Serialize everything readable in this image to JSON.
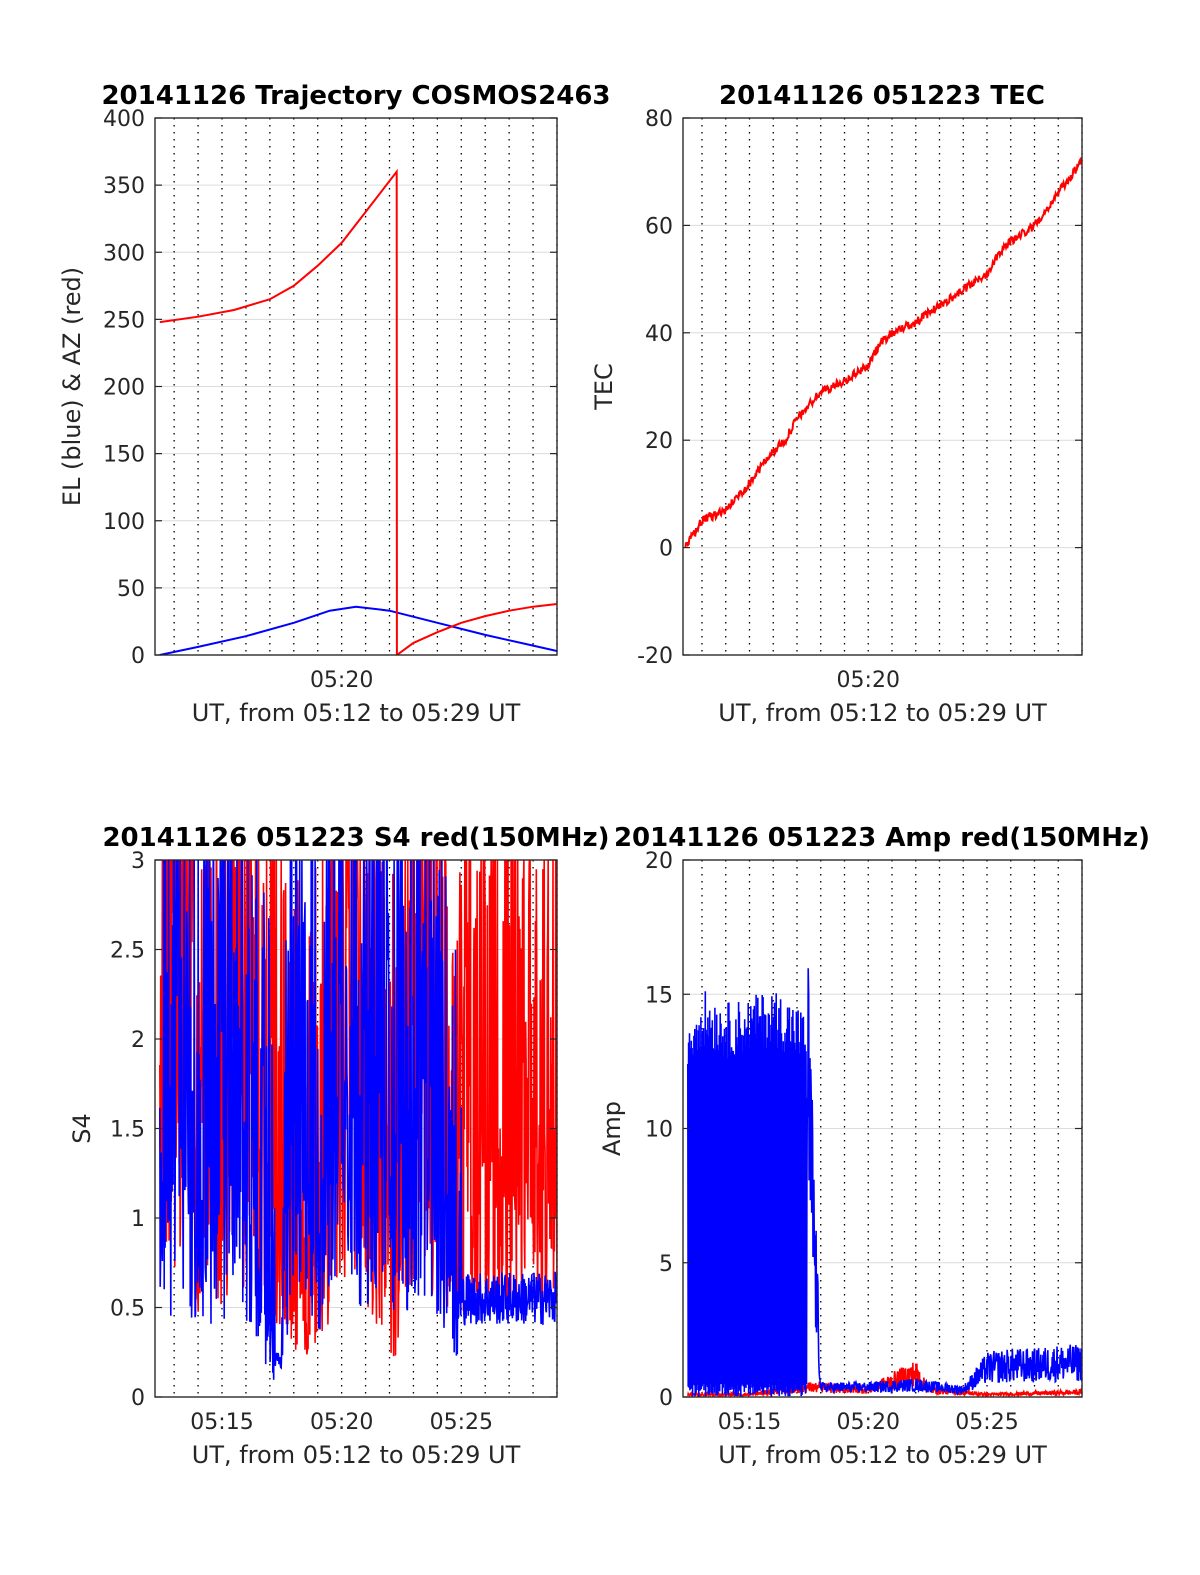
{
  "charts": {
    "traj": {
      "title": "20141126 Trajectory COSMOS2463",
      "ylabel": "EL (blue) & AZ (red)",
      "xlabel": "UT, from 05:12 to 05:29 UT",
      "yticks": [
        "0",
        "50",
        "100",
        "150",
        "200",
        "250",
        "300",
        "350",
        "400"
      ],
      "xticks": [
        "05:20"
      ]
    },
    "tec": {
      "title": "20141126 051223 TEC",
      "ylabel": "TEC",
      "xlabel": "UT, from 05:12 to 05:29 UT",
      "yticks": [
        "-20",
        "0",
        "20",
        "40",
        "60",
        "80"
      ],
      "xticks": [
        "05:20"
      ]
    },
    "s4": {
      "title": "20141126 051223 S4 red(150MHz)",
      "ylabel": "S4",
      "xlabel": "UT, from 05:12 to 05:29 UT",
      "yticks": [
        "0",
        "0.5",
        "1",
        "1.5",
        "2",
        "2.5",
        "3"
      ],
      "xticks": [
        "05:15",
        "05:20",
        "05:25"
      ]
    },
    "amp": {
      "title": "20141126 051223 Amp red(150MHz)",
      "ylabel": "Amp",
      "xlabel": "UT, from 05:12 to 05:29 UT",
      "yticks": [
        "0",
        "5",
        "10",
        "15",
        "20"
      ],
      "xticks": [
        "05:15",
        "05:20",
        "05:25"
      ]
    }
  },
  "chart_data": [
    {
      "type": "line",
      "title": "20141126 Trajectory COSMOS2463",
      "ylabel": "EL (blue) & AZ (red)",
      "xlabel": "UT, from 05:12 to 05:29 UT",
      "x_unit": "minutes after 05:00 UT",
      "xlim": [
        12.2,
        29.0
      ],
      "ylim": [
        0,
        400
      ],
      "grid": "vertical dotted",
      "colors": {
        "EL": "#0000ff",
        "AZ": "#ff0000"
      },
      "series": [
        {
          "color": "blue",
          "x": [
            12.4,
            14.0,
            16.0,
            18.0,
            19.5,
            20.6,
            22.0,
            24.0,
            26.0,
            28.0,
            29.0
          ],
          "values": [
            0,
            6,
            14,
            24,
            33,
            36,
            33,
            24,
            15,
            7,
            3
          ]
        },
        {
          "color": "red",
          "x": [
            12.4,
            14.0,
            15.5,
            17.0,
            18.0,
            19.0,
            20.0,
            21.0,
            22.3,
            22.31,
            23.0,
            24.0,
            25.0,
            26.0,
            27.0,
            28.0,
            29.0
          ],
          "values": [
            248,
            252,
            257,
            265,
            275,
            290,
            307,
            330,
            360,
            0,
            9,
            17,
            24,
            29,
            33,
            36,
            38
          ]
        }
      ]
    },
    {
      "type": "line",
      "title": "20141126 051223 TEC",
      "ylabel": "TEC",
      "xlabel": "UT, from 05:12 to 05:29 UT",
      "x_unit": "minutes after 05:00 UT",
      "xlim": [
        12.2,
        29.0
      ],
      "ylim": [
        -20,
        80
      ],
      "grid": "vertical dotted",
      "series": [
        {
          "color": "red",
          "x": [
            12.3,
            13.0,
            14.0,
            15.0,
            15.8,
            16.5,
            17.0,
            18.0,
            19.0,
            20.0,
            20.5,
            21.0,
            22.0,
            23.0,
            24.0,
            25.0,
            25.5,
            26.0,
            27.0,
            28.0,
            29.0
          ],
          "values": [
            0,
            5,
            7,
            12,
            17,
            20,
            24,
            29,
            31,
            34,
            38,
            40,
            42,
            45,
            48,
            51,
            55,
            57,
            60,
            66,
            72
          ]
        }
      ]
    },
    {
      "type": "line",
      "title": "20141126 051223 S4 red(150MHz)",
      "ylabel": "S4",
      "xlabel": "UT, from 05:12 to 05:29 UT",
      "x_unit": "minutes after 05:00 UT",
      "xlim": [
        12.2,
        29.0
      ],
      "ylim": [
        0,
        3
      ],
      "grid": "vertical dotted",
      "note": "dense noisy traces; values clipped at 3",
      "series": [
        {
          "color": "red",
          "x": [
            12.4,
            14.0,
            16.0,
            17.5,
            18.5,
            20.0,
            21.0,
            21.8,
            22.3,
            23.0,
            24.0,
            25.0,
            26.0,
            27.0,
            28.0,
            29.0
          ],
          "values": [
            3.0,
            1.5,
            1.9,
            1.2,
            0.6,
            1.8,
            1.6,
            0.9,
            0.7,
            2.0,
            1.5,
            1.5,
            1.5,
            1.5,
            1.5,
            1.5
          ]
        },
        {
          "color": "blue",
          "x": [
            12.4,
            14.0,
            16.0,
            17.3,
            18.0,
            19.0,
            20.0,
            21.0,
            22.0,
            23.0,
            24.0,
            25.0,
            26.0,
            27.0,
            28.0,
            29.0
          ],
          "values": [
            1.5,
            1.3,
            1.4,
            0.15,
            1.6,
            1.0,
            2.0,
            1.6,
            1.5,
            1.5,
            1.4,
            0.55,
            0.55,
            0.55,
            0.55,
            0.55
          ]
        }
      ]
    },
    {
      "type": "line",
      "title": "20141126 051223 Amp red(150MHz)",
      "ylabel": "Amp",
      "xlabel": "UT, from 05:12 to 05:29 UT",
      "x_unit": "minutes after 05:00 UT",
      "xlim": [
        12.2,
        29.0
      ],
      "ylim": [
        0,
        20
      ],
      "grid": "vertical dotted",
      "note": "dense noisy traces",
      "series": [
        {
          "color": "red",
          "x": [
            12.4,
            15.0,
            17.5,
            20.0,
            22.0,
            22.5,
            25.0,
            29.0
          ],
          "values": [
            0.1,
            0.1,
            0.4,
            0.3,
            1.0,
            0.3,
            0.1,
            0.2
          ]
        },
        {
          "color": "blue",
          "x": [
            12.4,
            13.0,
            14.0,
            15.0,
            16.0,
            17.0,
            17.4,
            18.0,
            20.0,
            22.0,
            24.0,
            25.0,
            26.0,
            27.0,
            28.0,
            29.0
          ],
          "values": [
            13.5,
            14.5,
            14.0,
            14.2,
            14.5,
            14.0,
            13.5,
            0.4,
            0.4,
            0.5,
            0.3,
            1.2,
            1.3,
            1.3,
            1.4,
            1.4
          ]
        }
      ]
    }
  ]
}
